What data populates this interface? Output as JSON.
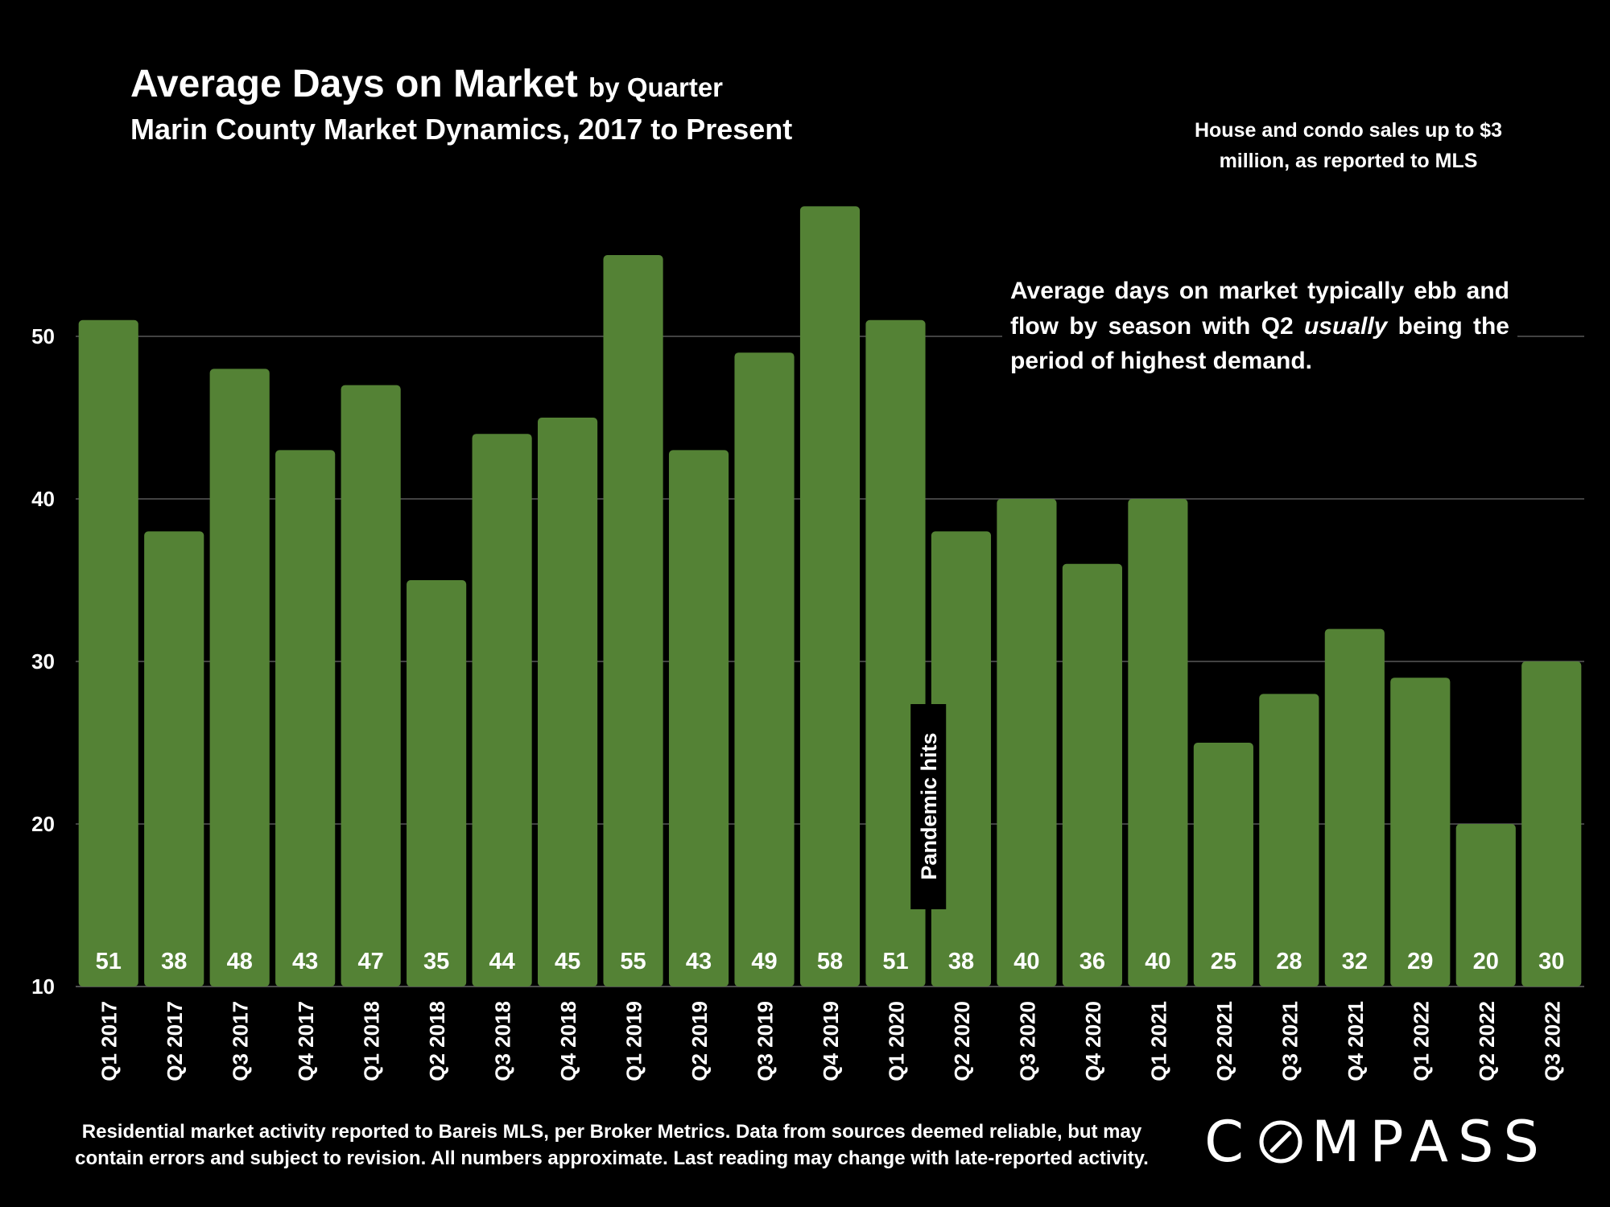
{
  "header": {
    "title_main": "Average Days on Market",
    "title_suffix": "by Quarter",
    "subtitle": "Marin County Market Dynamics, 2017 to Present"
  },
  "note": "House and condo sales up to $3 million, as reported to MLS",
  "callout": {
    "before": "Average days on market typically ebb and flow by season with Q2 ",
    "emphasis": "usually",
    "after": " being the period of highest demand."
  },
  "annotation": "Pandemic hits",
  "footnote": "Residential market activity reported to Bareis MLS, per Broker Metrics. Data from sources deemed reliable, but may contain errors and subject to revision. All numbers approximate. Last reading may change with late-reported activity.",
  "logo": {
    "text_before": "C",
    "text_after": "MPASS"
  },
  "colors": {
    "background": "#000000",
    "bar": "#548235",
    "text": "#ffffff",
    "grid": "#595959"
  },
  "chart_data": {
    "type": "bar",
    "categories": [
      "Q1 2017",
      "Q2 2017",
      "Q3 2017",
      "Q4 2017",
      "Q1 2018",
      "Q2 2018",
      "Q3 2018",
      "Q4 2018",
      "Q1 2019",
      "Q2 2019",
      "Q3 2019",
      "Q4 2019",
      "Q1 2020",
      "Q2 2020",
      "Q3 2020",
      "Q4 2020",
      "Q1 2021",
      "Q2 2021",
      "Q3 2021",
      "Q4 2021",
      "Q1 2022",
      "Q2 2022",
      "Q3 2022"
    ],
    "values": [
      51,
      38,
      48,
      43,
      47,
      35,
      44,
      45,
      55,
      43,
      49,
      58,
      51,
      38,
      40,
      36,
      40,
      25,
      28,
      32,
      29,
      20,
      30
    ],
    "data_labels": [
      "51",
      "38",
      "48",
      "43",
      "47",
      "35",
      "44",
      "45",
      "55",
      "43",
      "49",
      "58",
      "51",
      "38",
      "40",
      "36",
      "40",
      "25",
      "28",
      "32",
      "29",
      "20",
      "30"
    ],
    "yticks": [
      "10",
      "20",
      "30",
      "40",
      "50"
    ],
    "ylim": [
      10,
      60
    ],
    "grid": true,
    "annotation_between": [
      "Q1 2020",
      "Q2 2020"
    ]
  }
}
